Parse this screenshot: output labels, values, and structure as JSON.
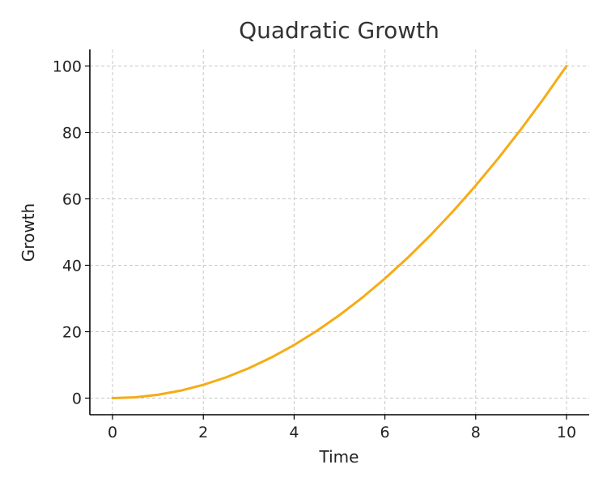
{
  "chart_data": {
    "type": "line",
    "title": "Quadratic Growth",
    "xlabel": "Time",
    "ylabel": "Growth",
    "xlim": [
      -0.5,
      10.5
    ],
    "ylim": [
      -5,
      105
    ],
    "xticks": [
      0,
      2,
      4,
      6,
      8,
      10
    ],
    "yticks": [
      0,
      20,
      40,
      60,
      80,
      100
    ],
    "grid": true,
    "grid_style": "dashed",
    "series": [
      {
        "color": "#f5ac16",
        "x": [
          0,
          0.5,
          1,
          1.5,
          2,
          2.5,
          3,
          3.5,
          4,
          4.5,
          5,
          5.5,
          6,
          6.5,
          7,
          7.5,
          8,
          8.5,
          9,
          9.5,
          10
        ],
        "y": [
          0,
          0.25,
          1,
          2.25,
          4,
          6.25,
          9,
          12.25,
          16,
          20.25,
          25,
          30.25,
          36,
          42.25,
          49,
          56.25,
          64,
          72.25,
          81,
          90.25,
          100
        ]
      }
    ]
  }
}
